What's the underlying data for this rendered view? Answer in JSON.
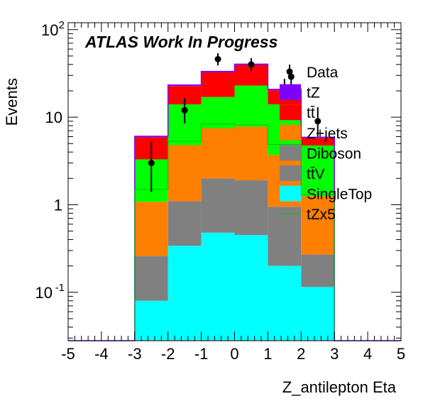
{
  "chart_data": {
    "type": "bar",
    "stacked": true,
    "xlabel": "Z_antilepton Eta",
    "ylabel": "Events",
    "annotation": "ATLAS Work In Progress",
    "xlim": [
      -5,
      5
    ],
    "ylim": [
      0.028,
      120
    ],
    "yscale": "log",
    "grid": false,
    "legend_position": "right",
    "x_ticks": [
      "-5",
      "-4",
      "-3",
      "-2",
      "-1",
      "0",
      "1",
      "2",
      "3",
      "4",
      "5"
    ],
    "y_ticks": [
      {
        "value": 0.1,
        "base": "10",
        "exp": "-1"
      },
      {
        "value": 1,
        "base": "1",
        "exp": ""
      },
      {
        "value": 10,
        "base": "10",
        "exp": ""
      },
      {
        "value": 100,
        "base": "10",
        "exp": "2"
      }
    ],
    "bin_edges": [
      -3,
      -2,
      -1,
      0,
      1,
      2,
      3
    ],
    "series": [
      {
        "name": "SingleTop",
        "color": "#00ffff",
        "values": [
          0.08,
          0.34,
          0.48,
          0.45,
          0.2,
          0.115
        ]
      },
      {
        "name": "tt̄V",
        "color": "#808080",
        "values": [
          0.18,
          0.76,
          1.52,
          1.45,
          0.75,
          0.155
        ]
      },
      {
        "name": "Diboson",
        "color": "#808080",
        "values": [
          0,
          0,
          0,
          0,
          0,
          0
        ]
      },
      {
        "name": "Z+jets",
        "color": "#ff7f00",
        "values": [
          0.82,
          3.7,
          5.5,
          5.9,
          2.75,
          0.98
        ]
      },
      {
        "name": "tt̄",
        "color": "#00ff00",
        "values": [
          2.22,
          9.2,
          9.5,
          15.2,
          10.3,
          3.5
        ]
      },
      {
        "name": "tt̄",
        "color": "#ff0000",
        "values": [
          2.6,
          8.7,
          15.5,
          16.5,
          6.3,
          1.05
        ]
      },
      {
        "name": "tZ",
        "color": "#7f00ff",
        "values": [
          0.15,
          0.6,
          0.8,
          0.9,
          0.5,
          0.1
        ]
      }
    ],
    "legend_colors": {
      "tt̄V": "#808080",
      "Diboson": "#808080"
    },
    "signal_x5": {
      "name": "tZx5",
      "color": "#00c000",
      "values": [
        1.5,
        5.3,
        8.4,
        8.1,
        4.9,
        1.3
      ]
    },
    "data": {
      "name": "Data",
      "x": [
        -2.5,
        -1.5,
        -0.5,
        0.5,
        1.5,
        1.7,
        2.5
      ],
      "y": [
        3,
        12,
        46,
        40,
        22,
        29,
        9
      ],
      "err_low": [
        1.6,
        3.5,
        7,
        6.5,
        4.5,
        5.4,
        3
      ],
      "err_high": [
        2.3,
        4.5,
        7.8,
        7.3,
        5.4,
        6.2,
        4
      ]
    },
    "legend": [
      "Data",
      "tZ",
      "tt̄",
      "Z+jets",
      "Diboson",
      "tt̄V",
      "SingleTop",
      "tZx5"
    ]
  }
}
